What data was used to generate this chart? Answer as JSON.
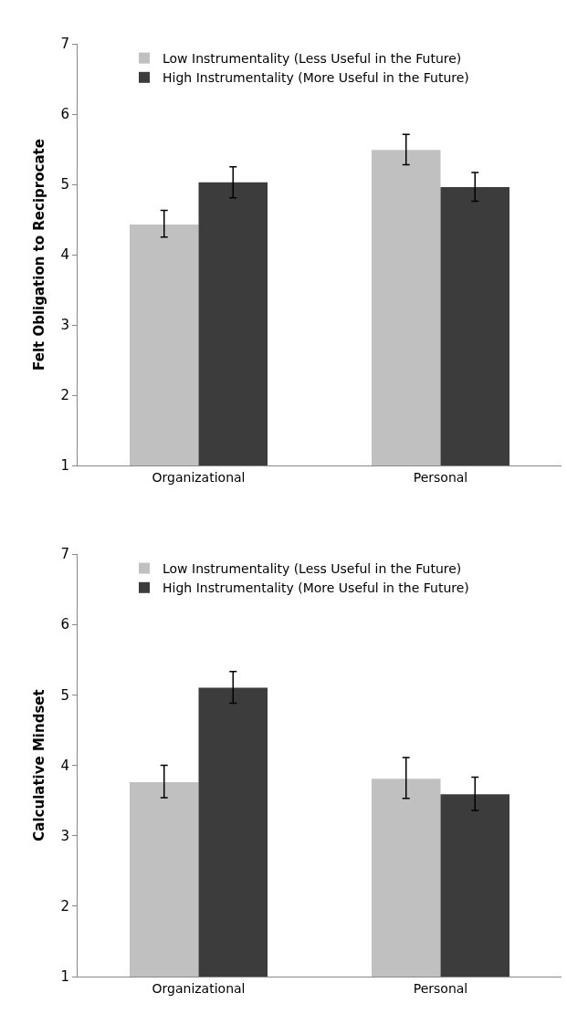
{
  "chart_data": [
    {
      "type": "bar",
      "ylabel": "Felt Obligation to Reciprocate",
      "categories": [
        "Organizational",
        "Personal"
      ],
      "series": [
        {
          "name": "Low Instrumentality (Less Useful in the Future)",
          "color": "#c0c0c0",
          "values": [
            4.43,
            5.49
          ],
          "errors": [
            [
              4.25,
              4.63
            ],
            [
              5.28,
              5.71
            ]
          ]
        },
        {
          "name": "High Instrumentality (More Useful in the Future)",
          "color": "#3c3c3c",
          "values": [
            5.03,
            4.96
          ],
          "errors": [
            [
              4.81,
              5.25
            ],
            [
              4.76,
              5.17
            ]
          ]
        }
      ],
      "ylim": [
        1,
        7
      ],
      "yticks": [
        1,
        2,
        3,
        4,
        5,
        6,
        7
      ],
      "legend": "top left"
    },
    {
      "type": "bar",
      "ylabel": "Calculative Mindset",
      "categories": [
        "Organizational",
        "Personal"
      ],
      "series": [
        {
          "name": "Low Instrumentality (Less Useful in the Future)",
          "color": "#c0c0c0",
          "values": [
            3.76,
            3.81
          ],
          "errors": [
            [
              3.54,
              4.0
            ],
            [
              3.53,
              4.11
            ]
          ]
        },
        {
          "name": "High Instrumentality (More Useful in the Future)",
          "color": "#3c3c3c",
          "values": [
            5.1,
            3.59
          ],
          "errors": [
            [
              4.88,
              5.33
            ],
            [
              3.36,
              3.83
            ]
          ]
        }
      ],
      "ylim": [
        1,
        7
      ],
      "yticks": [
        1,
        2,
        3,
        4,
        5,
        6,
        7
      ],
      "legend": "top left"
    }
  ]
}
